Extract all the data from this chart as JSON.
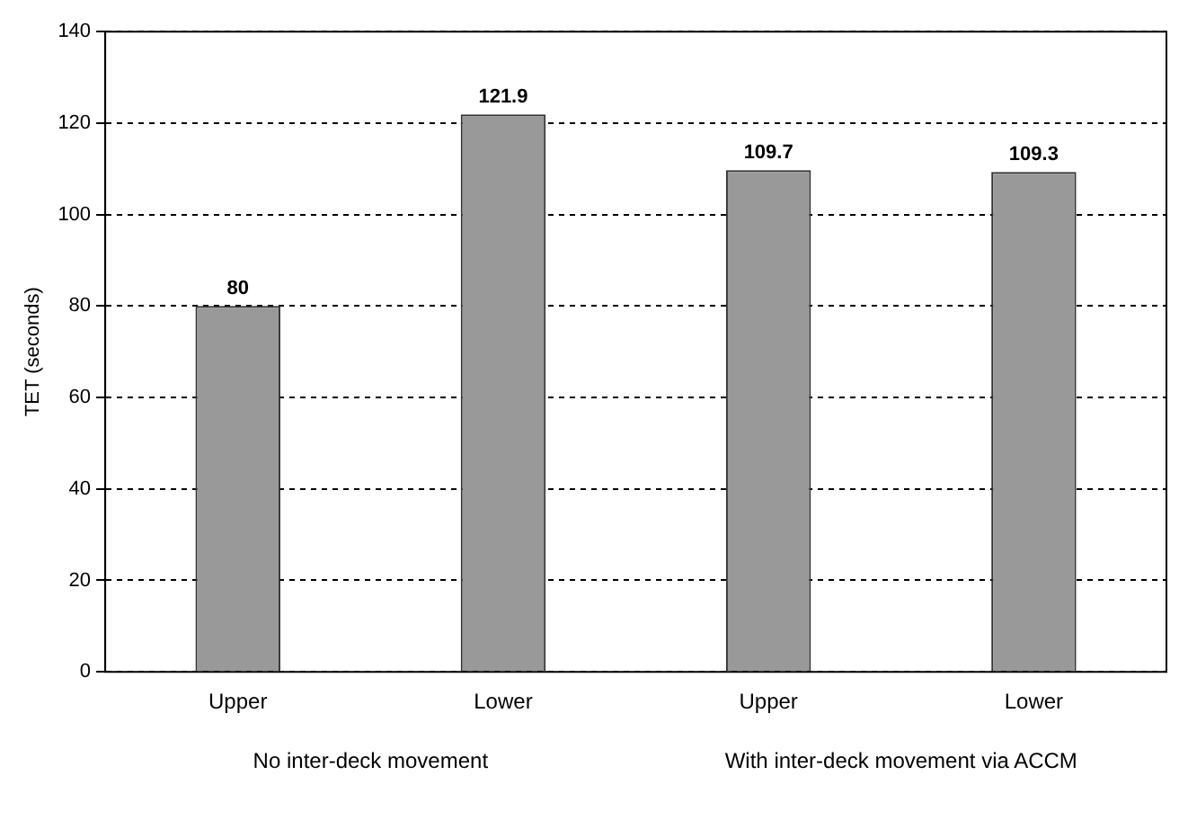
{
  "chart_data": {
    "type": "bar",
    "ylabel": "TET (seconds)",
    "categories": [
      "Upper",
      "Lower",
      "Upper",
      "Lower"
    ],
    "values": [
      80,
      121.9,
      109.7,
      109.3
    ],
    "color": "#999999",
    "ylim": [
      0,
      140
    ],
    "yticks": [
      0,
      20,
      40,
      60,
      80,
      100,
      120,
      140
    ],
    "grid": "y",
    "data_labels": true,
    "legend": false,
    "annotations": [
      "No inter-deck movement",
      "With inter-deck movement via ACCM"
    ]
  }
}
